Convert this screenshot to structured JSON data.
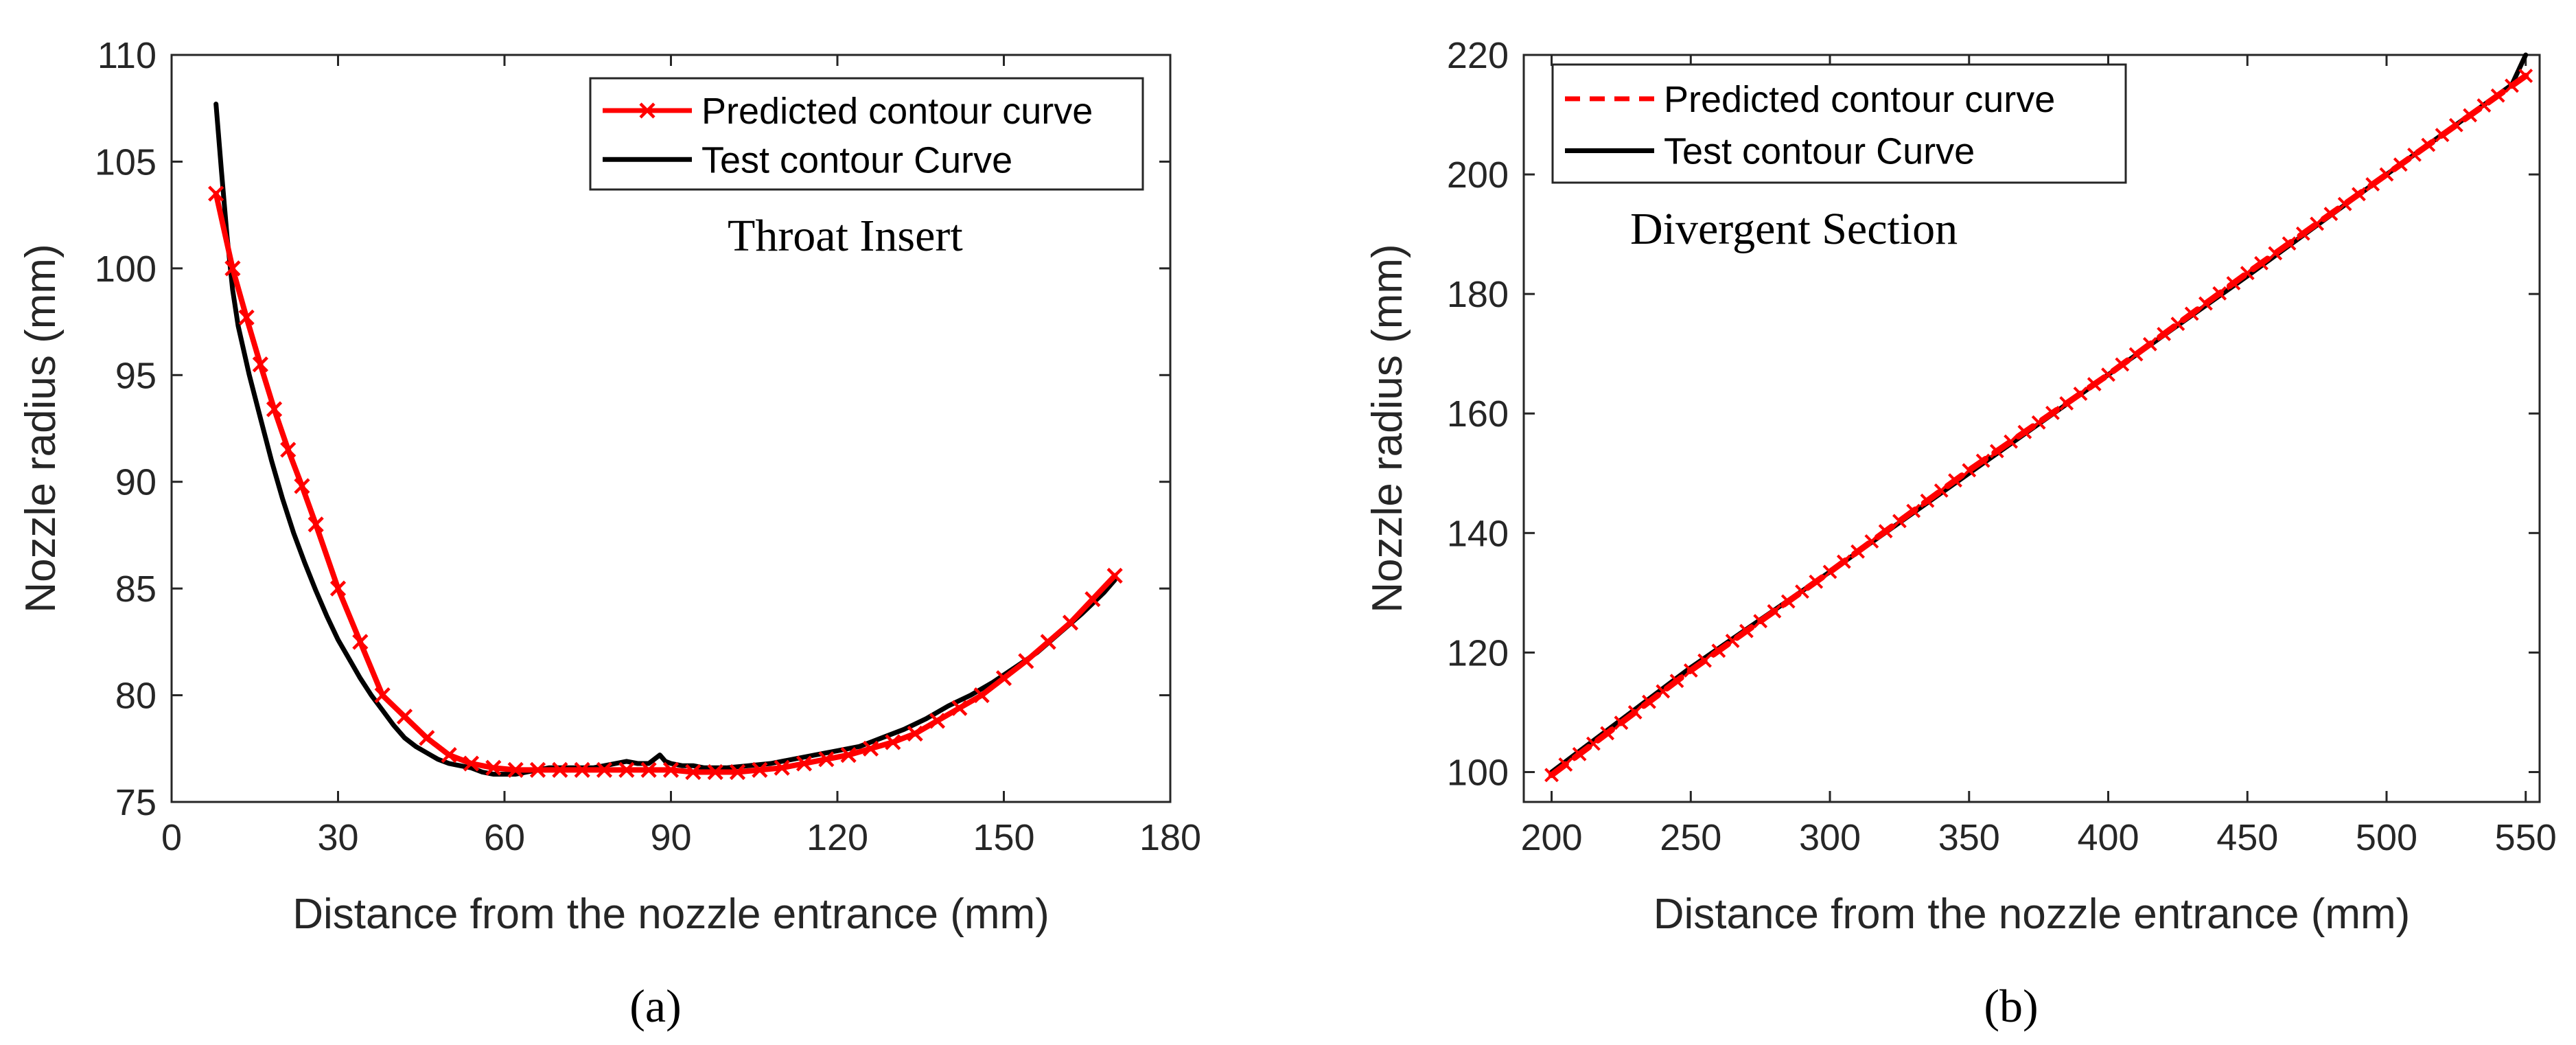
{
  "chart_data": [
    {
      "id": "a",
      "type": "line",
      "caption": "(a)",
      "xlabel": "Distance from the nozzle entrance (mm)",
      "ylabel": "Nozzle radius (mm)",
      "xlim": [
        0,
        180
      ],
      "ylim": [
        75,
        110
      ],
      "xticks": [
        0,
        30,
        60,
        90,
        120,
        150,
        180
      ],
      "yticks": [
        75,
        80,
        85,
        90,
        95,
        100,
        105,
        110
      ],
      "grid": false,
      "legend_position": "top-right",
      "annotation": "Throat Insert",
      "series": [
        {
          "name": "Predicted contour curve",
          "color": "#ff0000",
          "style": "solid-x",
          "x": [
            8,
            11,
            13.5,
            16,
            18.5,
            21,
            23.5,
            26,
            30,
            34,
            38,
            42,
            46,
            50,
            54,
            58,
            62,
            66,
            70,
            74,
            78,
            82,
            86,
            90,
            94,
            98,
            102,
            106,
            110,
            114,
            118,
            122,
            126,
            130,
            134,
            138,
            142,
            146,
            150,
            154,
            158,
            162,
            166,
            170
          ],
          "y": [
            103.5,
            100,
            97.7,
            95.5,
            93.4,
            91.5,
            89.8,
            88,
            85,
            82.5,
            80,
            79,
            78,
            77.2,
            76.8,
            76.6,
            76.5,
            76.5,
            76.5,
            76.5,
            76.5,
            76.5,
            76.5,
            76.5,
            76.4,
            76.4,
            76.4,
            76.5,
            76.6,
            76.8,
            77,
            77.2,
            77.5,
            77.8,
            78.2,
            78.8,
            79.4,
            80,
            80.8,
            81.6,
            82.5,
            83.4,
            84.5,
            85.6
          ]
        },
        {
          "name": "Test contour Curve",
          "color": "#000000",
          "style": "solid",
          "x": [
            8,
            9,
            10,
            11,
            12,
            14,
            16,
            18,
            20,
            22,
            24,
            26,
            28,
            30,
            32,
            34,
            36,
            38,
            40,
            42,
            44,
            46,
            48,
            50,
            52,
            54,
            56,
            58,
            60,
            62,
            64,
            66,
            68,
            70,
            72,
            74,
            76,
            78,
            80,
            82,
            84,
            86,
            87,
            88,
            89,
            90,
            92,
            94,
            96,
            98,
            100,
            104,
            108,
            112,
            116,
            120,
            124,
            128,
            132,
            136,
            140,
            144,
            148,
            152,
            156,
            160,
            164,
            168,
            170
          ],
          "y": [
            107.7,
            104.5,
            101.5,
            99,
            97.3,
            95,
            93,
            91,
            89.2,
            87.6,
            86.2,
            84.9,
            83.7,
            82.6,
            81.7,
            80.8,
            80,
            79.3,
            78.6,
            78,
            77.6,
            77.3,
            77,
            76.8,
            76.7,
            76.6,
            76.4,
            76.3,
            76.3,
            76.3,
            76.4,
            76.5,
            76.6,
            76.6,
            76.6,
            76.6,
            76.6,
            76.7,
            76.8,
            76.9,
            76.8,
            76.8,
            77,
            77.2,
            76.9,
            76.8,
            76.7,
            76.7,
            76.6,
            76.6,
            76.6,
            76.7,
            76.8,
            77,
            77.2,
            77.4,
            77.6,
            78,
            78.4,
            78.9,
            79.5,
            80,
            80.6,
            81.3,
            82,
            82.9,
            83.8,
            84.8,
            85.4
          ]
        }
      ]
    },
    {
      "id": "b",
      "type": "line",
      "caption": "(b)",
      "xlabel": "Distance from the nozzle entrance (mm)",
      "ylabel": "Nozzle radius (mm)",
      "xlim": [
        190,
        555
      ],
      "ylim": [
        95,
        220
      ],
      "xticks": [
        200,
        250,
        300,
        350,
        400,
        450,
        500,
        550
      ],
      "yticks": [
        100,
        120,
        140,
        160,
        180,
        200,
        220
      ],
      "grid": false,
      "legend_position": "top-left",
      "annotation": "Divergent Section",
      "series": [
        {
          "name": "Predicted contour curve",
          "color": "#ff0000",
          "style": "dashed-x",
          "x": [
            200,
            250,
            300,
            350,
            400,
            450,
            500,
            550
          ],
          "y": [
            99.5,
            117,
            133.5,
            150.5,
            166.5,
            183.5,
            200,
            216.5
          ]
        },
        {
          "name": "Test contour Curve",
          "color": "#000000",
          "style": "solid",
          "x": [
            200,
            250,
            300,
            350,
            400,
            450,
            500,
            545,
            550
          ],
          "y": [
            100,
            117.5,
            133.5,
            150,
            166.5,
            183,
            200,
            215,
            220
          ]
        }
      ]
    }
  ]
}
